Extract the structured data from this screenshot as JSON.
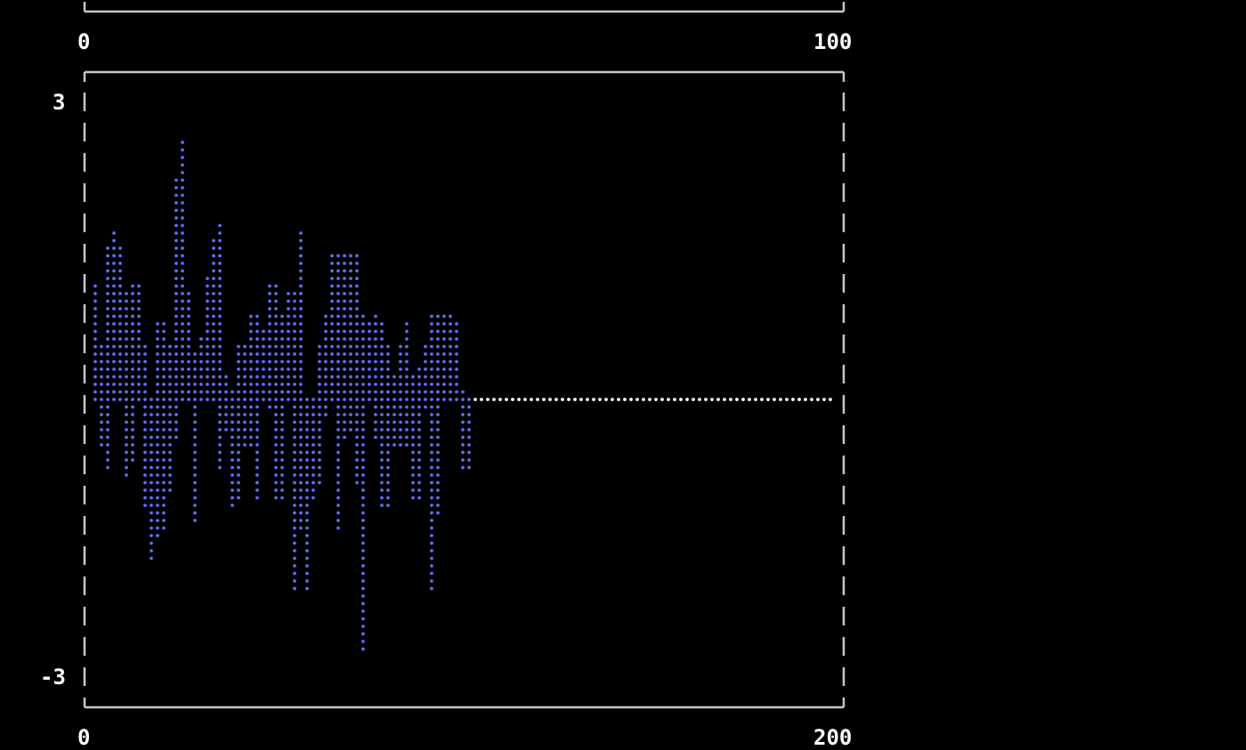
{
  "colors": {
    "background": "#000000",
    "frame": "#c8c8c8",
    "series": "#5f6cf2",
    "zero_line": "#ffffff",
    "text": "#ffffff"
  },
  "chart_data": [
    {
      "type": "line",
      "render": "braille-dots",
      "xlim": [
        0,
        100
      ],
      "x_tick_labels": [
        "0",
        "100"
      ],
      "series": []
    },
    {
      "type": "line",
      "render": "braille-dots",
      "xlim": [
        0,
        200
      ],
      "ylim": [
        -3,
        3
      ],
      "x_tick_labels": [
        "0",
        "200"
      ],
      "y_tick_labels": [
        "3",
        "-3"
      ],
      "grid": false,
      "series": [
        {
          "color": "#5f6cf2",
          "y": [
            0.79,
            -0.99,
            0.05,
            1.17,
            -0.48,
            0.53,
            -0.73,
            1.75,
            1.7,
            0.05,
            1.59,
            -0.8,
            1.22,
            -0.63,
            1.15,
            0.58,
            0.1,
            -1.43,
            -1.63,
            0.79,
            -1.43,
            0.79,
            -0.94,
            0.53,
            -0.43,
            2.37,
            2.68,
            0.05,
            0.84,
            -1.26,
            0.64,
            0.3,
            0.64,
            1.26,
            1.2,
            1.79,
            -0.69,
            0.2,
            0.1,
            -1.1,
            0.52,
            -1.0,
            0.52,
            -0.47,
            0.89,
            -1.06,
            0.89,
            0.26,
            0.05,
            1.22,
            -1.0,
            1.22,
            -1.0,
            1.1,
            0.1,
            1.1,
            -1.95,
            1.73,
            -1.95,
            -1.0,
            -0.1,
            -1.0,
            0.58,
            -0.17,
            0.89,
            0.3,
            1.48,
            -1.31,
            1.48,
            -0.43,
            1.52,
            -0.43,
            1.52,
            -2.64,
            0.9,
            0.4,
            0.9,
            0.32,
            -1.1,
            0.79,
            -1.1,
            0.2,
            -0.47,
            0.58,
            -0.47,
            0.79,
            -1.0,
            0.2,
            -1.0,
            0.32,
            -0.06,
            0.9,
            -1.95,
            0.9,
            0.3,
            0.9,
            0.2,
            0.9,
            0.2,
            0.05,
            -0.69,
            -0.69,
            0.0
          ]
        },
        {
          "color": "#ffffff",
          "x": [
            0,
            197
          ],
          "y": [
            0,
            0
          ]
        }
      ]
    }
  ]
}
